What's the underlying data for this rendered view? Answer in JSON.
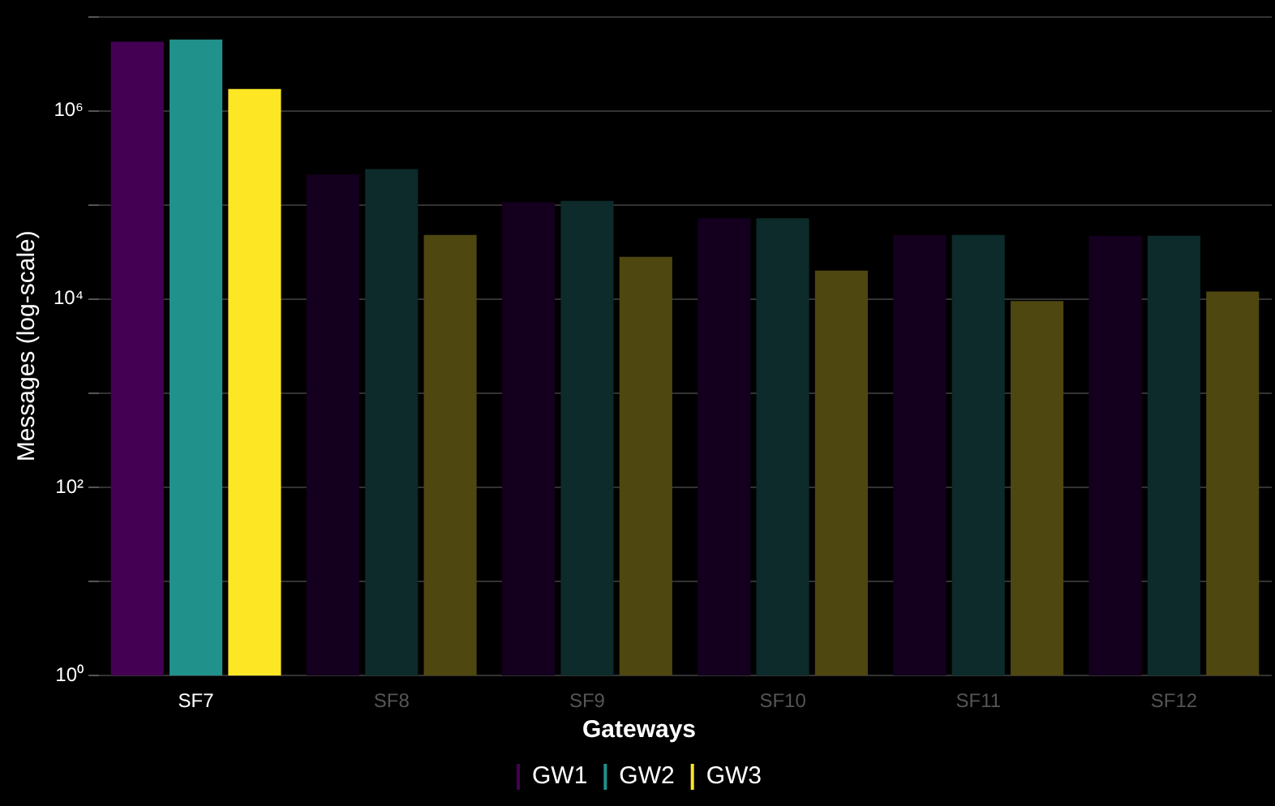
{
  "chart_data": {
    "type": "bar",
    "ylabel": "Messages (log-scale)",
    "legend_title": "Gateways",
    "categories": [
      "SF7",
      "SF8",
      "SF9",
      "SF10",
      "SF11",
      "SF12"
    ],
    "series": [
      {
        "name": "GW1",
        "color": "#440154",
        "colors": [
          "#440154",
          "#14001e",
          "#14001e",
          "#14001e",
          "#14001e",
          "#14001e"
        ],
        "values": [
          5400000,
          210000,
          107000,
          72000,
          48000,
          47000
        ]
      },
      {
        "name": "GW2",
        "color": "#21918c",
        "colors": [
          "#21918c",
          "#0c2b2a",
          "#0c2b2a",
          "#0c2b2a",
          "#0c2b2a",
          "#0c2b2a"
        ],
        "values": [
          5700000,
          240000,
          110000,
          72000,
          48000,
          47000
        ]
      },
      {
        "name": "GW3",
        "color": "#fde725",
        "colors": [
          "#fde725",
          "#4f4710",
          "#4f4710",
          "#4f4710",
          "#4f4710",
          "#4f4710"
        ],
        "values": [
          1700000,
          48000,
          28000,
          20000,
          9500,
          12000
        ]
      }
    ],
    "log": "y",
    "ylim": [
      1,
      10000000
    ],
    "yticks": [
      {
        "value": 1,
        "label": "10⁰"
      },
      {
        "value": 10,
        "label": null
      },
      {
        "value": 100,
        "label": "10²"
      },
      {
        "value": 1000,
        "label": null
      },
      {
        "value": 10000,
        "label": "10⁴"
      },
      {
        "value": 100000,
        "label": null
      },
      {
        "value": 1000000,
        "label": "10⁶"
      },
      {
        "value": 10000000,
        "label": null
      }
    ],
    "grid": "y",
    "legend": "bottom"
  }
}
